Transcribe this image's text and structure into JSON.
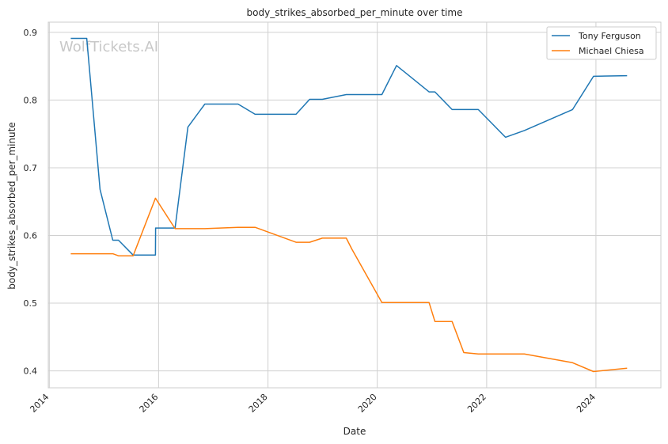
{
  "chart_data": {
    "type": "line",
    "title": "body_strikes_absorbed_per_minute over time",
    "xlabel": "Date",
    "ylabel": "body_strikes_absorbed_per_minute",
    "watermark": "WolfTickets.AI",
    "x_ticks": [
      "2014",
      "2016",
      "2018",
      "2020",
      "2022",
      "2024"
    ],
    "y_ticks": [
      "0.4",
      "0.5",
      "0.6",
      "0.7",
      "0.8",
      "0.9"
    ],
    "xlim": [
      "2013-12-25",
      "2025-03-10"
    ],
    "ylim": [
      0.375,
      0.915
    ],
    "grid": true,
    "legend_position": "top-right",
    "series": [
      {
        "name": "Tony Ferguson",
        "color": "#1f77b4",
        "points": [
          [
            "2014-05-24",
            0.891
          ],
          [
            "2014-09-08",
            0.891
          ],
          [
            "2014-12-06",
            0.668
          ],
          [
            "2015-03-01",
            0.593
          ],
          [
            "2015-04-08",
            0.593
          ],
          [
            "2015-07-15",
            0.571
          ],
          [
            "2015-12-11",
            0.571
          ],
          [
            "2015-12-12",
            0.611
          ],
          [
            "2016-04-20",
            0.611
          ],
          [
            "2016-07-15",
            0.76
          ],
          [
            "2016-11-05",
            0.794
          ],
          [
            "2017-06-15",
            0.794
          ],
          [
            "2017-10-07",
            0.779
          ],
          [
            "2018-07-07",
            0.779
          ],
          [
            "2018-10-06",
            0.801
          ],
          [
            "2018-12-30",
            0.801
          ],
          [
            "2019-06-08",
            0.808
          ],
          [
            "2020-02-01",
            0.808
          ],
          [
            "2020-05-09",
            0.851
          ],
          [
            "2020-12-12",
            0.812
          ],
          [
            "2021-01-20",
            0.812
          ],
          [
            "2021-05-15",
            0.786
          ],
          [
            "2021-11-06",
            0.786
          ],
          [
            "2022-05-07",
            0.745
          ],
          [
            "2022-09-10",
            0.755
          ],
          [
            "2023-07-29",
            0.786
          ],
          [
            "2023-12-16",
            0.835
          ],
          [
            "2024-07-27",
            0.836
          ]
        ]
      },
      {
        "name": "Michael Chiesa",
        "color": "#ff7f0e",
        "points": [
          [
            "2014-05-24",
            0.573
          ],
          [
            "2015-03-01",
            0.573
          ],
          [
            "2015-04-08",
            0.57
          ],
          [
            "2015-07-15",
            0.57
          ],
          [
            "2015-12-11",
            0.655
          ],
          [
            "2016-04-20",
            0.61
          ],
          [
            "2016-11-05",
            0.61
          ],
          [
            "2017-06-15",
            0.612
          ],
          [
            "2017-10-07",
            0.612
          ],
          [
            "2018-07-07",
            0.59
          ],
          [
            "2018-10-06",
            0.59
          ],
          [
            "2018-12-30",
            0.596
          ],
          [
            "2019-06-08",
            0.596
          ],
          [
            "2019-07-15",
            0.58
          ],
          [
            "2020-02-01",
            0.501
          ],
          [
            "2020-12-12",
            0.501
          ],
          [
            "2021-01-20",
            0.473
          ],
          [
            "2021-05-15",
            0.473
          ],
          [
            "2021-08-01",
            0.427
          ],
          [
            "2021-11-06",
            0.425
          ],
          [
            "2022-09-10",
            0.425
          ],
          [
            "2023-07-29",
            0.412
          ],
          [
            "2023-12-16",
            0.399
          ],
          [
            "2024-07-27",
            0.404
          ]
        ]
      }
    ]
  }
}
